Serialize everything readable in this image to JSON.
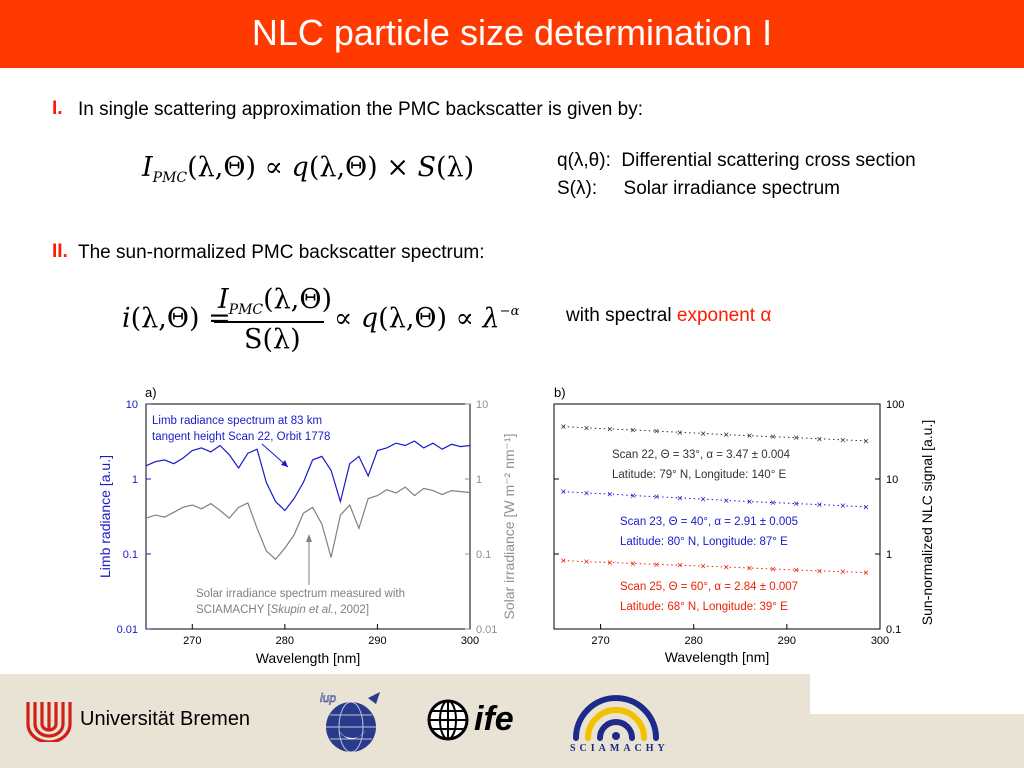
{
  "header": {
    "title": "NLC particle size determination I"
  },
  "section1": {
    "label": "I.",
    "text": "In single scattering approximation the PMC backscatter is given by:"
  },
  "equation1": {
    "lhs": "I",
    "lhs_sub": "PMC",
    "args": "(λ,Θ)",
    "prop": "∝",
    "q": "q",
    "q_args": "(λ,Θ)",
    "times": "×",
    "s": "S",
    "s_args": "(λ)"
  },
  "definitions": {
    "q_symbol": "q(λ,θ):",
    "q_text": "Differential scattering cross section",
    "s_symbol": "S(λ):",
    "s_text": "Solar irradiance spectrum"
  },
  "section2": {
    "label": "II.",
    "text": "The sun-normalized PMC backscatter spectrum:"
  },
  "equation2": {
    "i": "i",
    "args": "(λ,Θ)",
    "eq": "=",
    "num": "I",
    "num_sub": "PMC",
    "num_args": "(λ,Θ)",
    "den": "S(λ)",
    "prop": "∝",
    "q": "q",
    "q_args": "(λ,Θ)",
    "prop2": "∝",
    "lam": "λ",
    "exp": "−α"
  },
  "exponent_note": {
    "prefix": "with spectral",
    "highlight": "exponent α"
  },
  "chart_data": [
    {
      "panel": "a)",
      "type": "line",
      "xlabel": "Wavelength [nm]",
      "ylabel_left": "Limb radiance [a.u.]",
      "ylabel_right": "Solar irradiance [W m⁻² nm⁻¹]",
      "xlim": [
        265,
        300
      ],
      "xticks": [
        "270",
        "280",
        "290",
        "300"
      ],
      "ylim_left": [
        0.01,
        10
      ],
      "yticks_left": [
        "0.01",
        "0.1",
        "1",
        "10"
      ],
      "yticks_right": [
        "0.01",
        "0.1",
        "1",
        "10"
      ],
      "yscale": "log",
      "colors": {
        "limb": "#1a1acc",
        "solar": "#808080",
        "axis_left": "#1a1acc",
        "axis_right": "#909090"
      },
      "annotations": [
        {
          "line1": "Limb radiance spectrum at 83 km",
          "line2": "tangent height Scan 22, Orbit 1778"
        },
        {
          "line1": "Solar irradiance spectrum measured with",
          "line2a": "SCIAMACHY [",
          "line2b": "Skupin et al.",
          "line2c": ", 2002]"
        }
      ],
      "series": [
        {
          "x": [
            265,
            266,
            267,
            268,
            269,
            270,
            271,
            272,
            273,
            274,
            275,
            276,
            277,
            278,
            279,
            280,
            281,
            282,
            283,
            284,
            285,
            286,
            287,
            288,
            289,
            290,
            291,
            292,
            293,
            294,
            295,
            296,
            297,
            298,
            299,
            300
          ],
          "values": [
            1.5,
            1.7,
            1.8,
            1.6,
            1.9,
            2.4,
            2.6,
            2.3,
            2.8,
            2.1,
            1.4,
            2.2,
            2.5,
            0.9,
            0.5,
            0.38,
            0.55,
            0.9,
            1.8,
            2.0,
            1.3,
            0.5,
            1.6,
            2.0,
            1.1,
            2.4,
            2.6,
            3.0,
            2.8,
            3.2,
            2.6,
            3.0,
            2.5,
            2.9,
            2.7,
            2.8
          ]
        },
        {
          "x": [
            265,
            266,
            267,
            268,
            269,
            270,
            271,
            272,
            273,
            274,
            275,
            276,
            277,
            278,
            279,
            280,
            281,
            282,
            283,
            284,
            285,
            286,
            287,
            288,
            289,
            290,
            291,
            292,
            293,
            294,
            295,
            296,
            297,
            298,
            299,
            300
          ],
          "values": [
            0.3,
            0.33,
            0.31,
            0.36,
            0.42,
            0.45,
            0.4,
            0.47,
            0.38,
            0.3,
            0.42,
            0.48,
            0.22,
            0.11,
            0.085,
            0.12,
            0.18,
            0.35,
            0.42,
            0.25,
            0.09,
            0.33,
            0.45,
            0.22,
            0.55,
            0.6,
            0.72,
            0.65,
            0.78,
            0.6,
            0.75,
            0.7,
            0.62,
            0.7,
            0.68,
            0.66
          ]
        }
      ]
    },
    {
      "panel": "b)",
      "type": "scatter",
      "xlabel": "Wavelength [nm]",
      "ylabel_right": "Sun-normalized NLC signal [a.u.]",
      "xlim": [
        265,
        300
      ],
      "xticks": [
        "270",
        "280",
        "290",
        "300"
      ],
      "ylim": [
        0.1,
        100
      ],
      "yticks_right": [
        "0.1",
        "1",
        "10",
        "100"
      ],
      "yscale": "log",
      "series": [
        {
          "color": "#333333",
          "x": [
            266,
            268.5,
            271,
            273.5,
            276,
            278.5,
            281,
            283.5,
            286,
            288.5,
            291,
            293.5,
            296,
            298.5
          ],
          "values": [
            50,
            48,
            46.5,
            45,
            43.5,
            42,
            40.5,
            39,
            37.8,
            36.6,
            35.5,
            34.4,
            33.3,
            32.2
          ],
          "text1": "Scan 22, Θ = 33°, α = 3.47 ± 0.004",
          "text2": "Latitude: 79° N, Longitude: 140° E"
        },
        {
          "color": "#1a1acc",
          "x": [
            266,
            268.5,
            271,
            273.5,
            276,
            278.5,
            281,
            283.5,
            286,
            288.5,
            291,
            293.5,
            296,
            298.5
          ],
          "values": [
            6.8,
            6.5,
            6.3,
            6.0,
            5.8,
            5.6,
            5.4,
            5.2,
            5.0,
            4.85,
            4.7,
            4.55,
            4.4,
            4.25
          ],
          "text1": "Scan 23, Θ = 40°, α = 2.91 ± 0.005",
          "text2": "Latitude: 80° N, Longitude: 87° E"
        },
        {
          "color": "#ee2200",
          "x": [
            266,
            268.5,
            271,
            273.5,
            276,
            278.5,
            281,
            283.5,
            286,
            288.5,
            291,
            293.5,
            296,
            298.5
          ],
          "values": [
            0.82,
            0.79,
            0.77,
            0.75,
            0.73,
            0.71,
            0.69,
            0.67,
            0.65,
            0.63,
            0.61,
            0.595,
            0.58,
            0.565
          ],
          "text1": "Scan 25, Θ = 60°, α = 2.84 ± 0.007",
          "text2": "Latitude: 68° N, Longitude: 39° E"
        }
      ]
    }
  ],
  "footer": {
    "university": "Universität Bremen",
    "ife": "ife",
    "sciamachy": "SCIAMACHY",
    "iup": "iup",
    "colors": {
      "uni_red": "#d0201a",
      "sciamachy_blue": "#1e2a8a",
      "sciamachy_yellow": "#f2c200"
    }
  }
}
